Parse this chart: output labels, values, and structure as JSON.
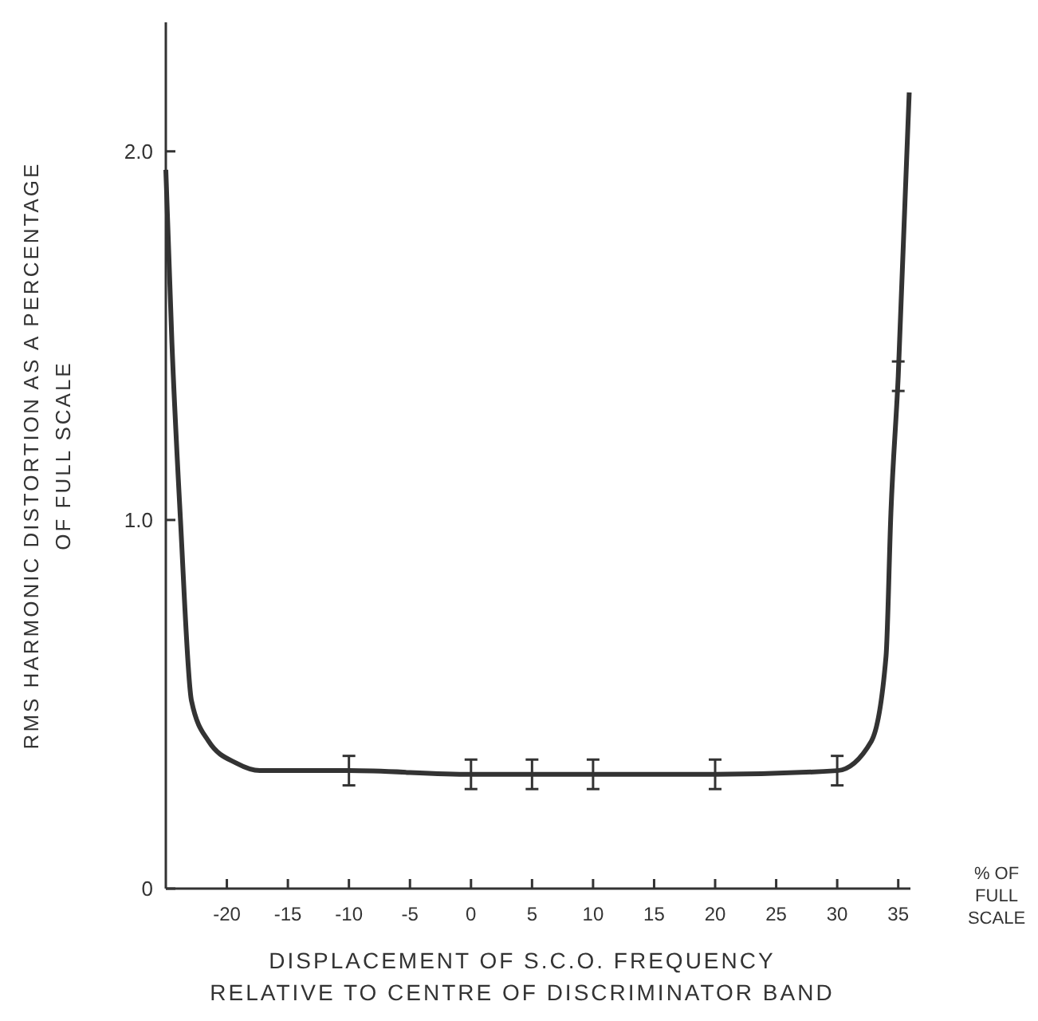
{
  "chart_data": {
    "type": "line",
    "xlabel": "DISPLACEMENT OF S.C.O. FREQUENCY\nRELATIVE TO CENTRE OF DISCRIMINATOR BAND",
    "ylabel": "RMS HARMONIC DISTORTION AS A PERCENTAGE\nOF FULL SCALE",
    "annotations": [
      "% OF\nFULL\nSCALE"
    ],
    "xlim": [
      -25,
      36
    ],
    "xticks": [
      -20,
      -15,
      -10,
      -5,
      0,
      5,
      10,
      15,
      20,
      25,
      30,
      35
    ],
    "ylim": [
      0,
      2.35
    ],
    "yticks": [
      0,
      {
        "value": 1,
        "label": "1.0"
      },
      {
        "value": 2,
        "label": "2.0"
      }
    ],
    "grid": false,
    "marker": "none",
    "line_style": "solid",
    "series": [
      {
        "color": "#333333",
        "x": [
          -25,
          -24.5,
          -23.8,
          -22.9,
          -21.5,
          -19.2,
          -17.3,
          -10,
          0,
          5,
          10,
          20,
          30,
          32.8,
          34,
          34.4,
          35,
          35.9
        ],
        "values": [
          1.95,
          1.48,
          1.0,
          0.51,
          0.4,
          0.34,
          0.32,
          0.32,
          0.31,
          0.31,
          0.31,
          0.31,
          0.32,
          0.4,
          0.63,
          1.02,
          1.39,
          2.16
        ],
        "errors": [
          null,
          null,
          null,
          null,
          null,
          null,
          null,
          0.04,
          0.04,
          0.04,
          0.04,
          0.04,
          0.04,
          null,
          null,
          null,
          0.04,
          null
        ]
      }
    ]
  }
}
